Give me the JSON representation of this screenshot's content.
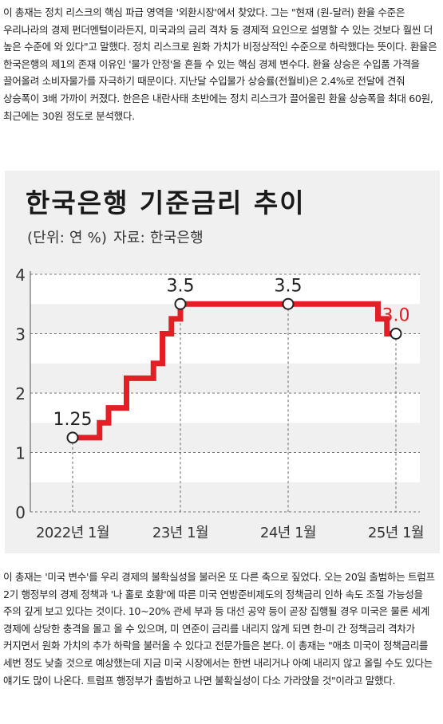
{
  "article": {
    "paragraph_top": "이 총재는 정치 리스크의 핵심 파급 영역을 '외환시장'에서 찾았다. 그는 \"현재 (원-달러) 환율 수준은 우리나라의 경제 펀더멘털이라든지, 미국과의 금리 격차 등 경제적 요인으로 설명할 수 있는 것보다 훨씬 더 높은 수준에 와 있다\"고 말했다. 정치 리스크로 원화 가치가 비정상적인 수준으로 하락했다는 뜻이다. 환율은 한국은행의 제1의 존재 이유인 '물가 안정'을 흔들 수 있는 핵심 경제 변수다. 환율 상승은 수입품 가격을 끌어올려 소비자물가를 자극하기 때문이다. 지난달 수입물가 상승률(전월비)은 2.4%로 전달에 견줘 상승폭이 3배 가까이 커졌다. 한은은 내란사태 초반에는 정치 리스크가 끌어올린 환율 상승폭을 최대 60원, 최근에는 30원 정도로 분석했다.",
    "paragraph_bottom": "이 총재는 '미국 변수'를 우리 경제의 불확실성을 불러온 또 다른 축으로 짚었다. 오는 20일 출범하는 트럼프 2기 행정부의 경제 정책과 '나 홀로 호황'에 따른 미국 연방준비제도의 정책금리 인하 속도 조절 가능성을 주의 깊게 보고 있다는 것이다. 10~20% 관세 부과 등 대선 공약 등이 곧장 집행될 경우 미국은 물론 세계 경제에 상당한 충격을 몰고 올 수 있으며, 미 연준이 금리를 내리지 않게 되면 한-미 간 정책금리 격차가 커지면서 원화 가치의 추가 하락을 불러올 수 있다고 전문가들은 본다. 이 총재는 \"애초 미국이 정책금리를 세번 정도 낮출 것으로 예상했는데 지금 미국 시장에서는 한번 내리거나 아예 내리지 않고 올릴 수도 있다는 얘기도 많이 나온다. 트럼프 행정부가 출범하고 나면 불확실성이 다소 가라앉을 것\"이라고 말했다."
  },
  "chart_data": {
    "type": "line",
    "title": "한국은행 기준금리 추이",
    "unit_label": "(단위: 연 %)",
    "source_label": "자료: 한국은행",
    "x_tick_labels": [
      "2022년 1월",
      "23년 1월",
      "24년 1월",
      "25년 1월"
    ],
    "x_ticks": [
      0,
      12,
      24,
      36
    ],
    "y_tick_labels": [
      "0",
      "1",
      "2",
      "3",
      "4"
    ],
    "y_ticks": [
      0,
      1,
      2,
      3,
      4
    ],
    "ylim": [
      0,
      4
    ],
    "xlim": [
      0,
      36
    ],
    "step": true,
    "series": [
      {
        "name": "",
        "color": "#e31e24",
        "points": [
          [
            0,
            1.25
          ],
          [
            3,
            1.5
          ],
          [
            4,
            1.75
          ],
          [
            6,
            2.25
          ],
          [
            9,
            2.5
          ],
          [
            10,
            3.0
          ],
          [
            11,
            3.25
          ],
          [
            12,
            3.5
          ],
          [
            24,
            3.5
          ],
          [
            33,
            3.5
          ],
          [
            34,
            3.25
          ],
          [
            35,
            3.0
          ],
          [
            36,
            3.0
          ]
        ]
      }
    ],
    "annotations": [
      {
        "x": 0,
        "y": 1.25,
        "label": "1.25",
        "color": "#222222"
      },
      {
        "x": 12,
        "y": 3.5,
        "label": "3.5",
        "color": "#222222"
      },
      {
        "x": 24,
        "y": 3.5,
        "label": "3.5",
        "color": "#222222"
      },
      {
        "x": 36,
        "y": 3.0,
        "label": "3.0",
        "color": "#e31e24"
      }
    ],
    "grid": "alternating-bands",
    "colors": {
      "line": "#e31e24",
      "band": "#f0f0f0",
      "band_alt": "#ffffff",
      "panel": "#f0f0f0"
    }
  }
}
